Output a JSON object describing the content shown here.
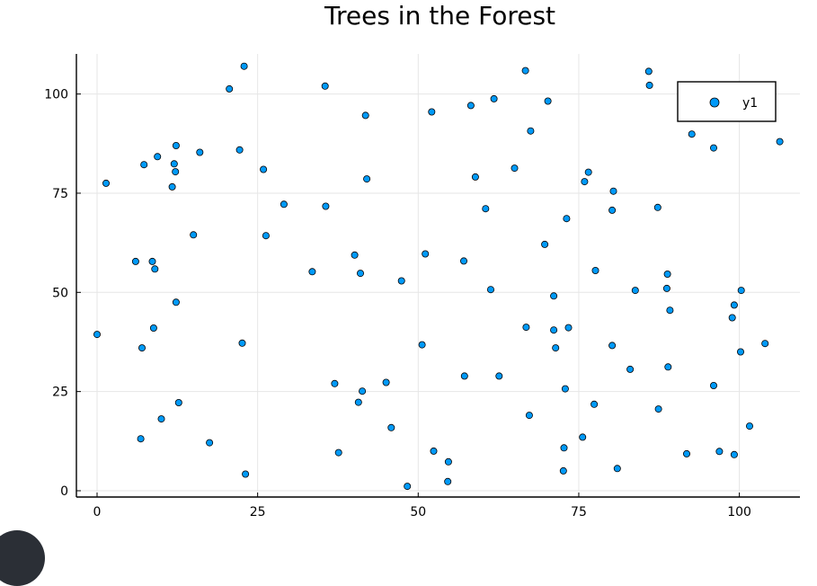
{
  "chart_data": {
    "type": "scatter",
    "title": "Trees in the Forest",
    "xlabel": "",
    "ylabel": "",
    "xlim": [
      -3,
      110
    ],
    "ylim": [
      -2,
      110
    ],
    "xticks": [
      0,
      25,
      50,
      75,
      100
    ],
    "yticks": [
      0,
      25,
      50,
      75,
      100
    ],
    "grid": true,
    "legend": "top-right",
    "series": [
      {
        "name": "y1",
        "color": "#009af9",
        "points": [
          [
            0.0,
            39.4
          ],
          [
            1.4,
            77.5
          ],
          [
            6.0,
            57.8
          ],
          [
            6.8,
            13.1
          ],
          [
            7.0,
            36.0
          ],
          [
            7.3,
            82.2
          ],
          [
            8.6,
            57.8
          ],
          [
            8.8,
            41.0
          ],
          [
            9.0,
            55.9
          ],
          [
            9.4,
            84.2
          ],
          [
            10.0,
            18.1
          ],
          [
            11.7,
            76.6
          ],
          [
            12.0,
            82.4
          ],
          [
            12.2,
            80.4
          ],
          [
            12.3,
            87.0
          ],
          [
            12.3,
            47.5
          ],
          [
            12.7,
            22.2
          ],
          [
            15.0,
            64.5
          ],
          [
            16.0,
            85.3
          ],
          [
            17.5,
            12.1
          ],
          [
            20.6,
            101.3
          ],
          [
            22.2,
            85.9
          ],
          [
            22.6,
            37.2
          ],
          [
            22.9,
            107.0
          ],
          [
            23.1,
            4.2
          ],
          [
            25.9,
            81.0
          ],
          [
            26.3,
            64.3
          ],
          [
            29.1,
            72.2
          ],
          [
            33.5,
            55.2
          ],
          [
            35.5,
            102.0
          ],
          [
            35.6,
            71.7
          ],
          [
            37.0,
            27.0
          ],
          [
            37.6,
            9.6
          ],
          [
            40.1,
            59.4
          ],
          [
            40.7,
            22.3
          ],
          [
            41.0,
            54.8
          ],
          [
            41.3,
            25.1
          ],
          [
            41.8,
            94.6
          ],
          [
            42.0,
            78.6
          ],
          [
            45.0,
            27.3
          ],
          [
            45.8,
            15.9
          ],
          [
            47.4,
            52.9
          ],
          [
            48.3,
            1.1
          ],
          [
            50.6,
            36.8
          ],
          [
            51.1,
            59.7
          ],
          [
            52.1,
            95.5
          ],
          [
            52.4,
            10.0
          ],
          [
            54.6,
            2.3
          ],
          [
            54.7,
            7.3
          ],
          [
            57.1,
            57.9
          ],
          [
            57.2,
            28.9
          ],
          [
            58.2,
            97.1
          ],
          [
            58.9,
            79.1
          ],
          [
            60.5,
            71.1
          ],
          [
            61.3,
            50.7
          ],
          [
            61.8,
            98.8
          ],
          [
            62.6,
            28.9
          ],
          [
            65.0,
            81.3
          ],
          [
            66.7,
            105.9
          ],
          [
            66.8,
            41.2
          ],
          [
            67.3,
            19.0
          ],
          [
            67.5,
            90.7
          ],
          [
            69.7,
            62.1
          ],
          [
            70.2,
            98.2
          ],
          [
            71.1,
            49.1
          ],
          [
            71.1,
            40.5
          ],
          [
            71.4,
            36.0
          ],
          [
            72.6,
            5.0
          ],
          [
            72.7,
            10.8
          ],
          [
            72.9,
            25.7
          ],
          [
            73.1,
            68.6
          ],
          [
            73.4,
            41.1
          ],
          [
            75.6,
            13.5
          ],
          [
            75.9,
            77.9
          ],
          [
            76.5,
            80.3
          ],
          [
            77.4,
            21.8
          ],
          [
            77.6,
            55.5
          ],
          [
            80.2,
            36.6
          ],
          [
            80.2,
            70.7
          ],
          [
            80.4,
            75.5
          ],
          [
            81.0,
            5.6
          ],
          [
            83.0,
            30.6
          ],
          [
            83.8,
            50.5
          ],
          [
            85.9,
            105.7
          ],
          [
            86.0,
            102.2
          ],
          [
            87.3,
            71.4
          ],
          [
            87.4,
            20.6
          ],
          [
            88.7,
            51.0
          ],
          [
            88.8,
            54.6
          ],
          [
            88.9,
            31.2
          ],
          [
            89.2,
            45.5
          ],
          [
            91.8,
            9.3
          ],
          [
            92.6,
            89.9
          ],
          [
            96.0,
            86.4
          ],
          [
            96.0,
            26.5
          ],
          [
            96.9,
            9.9
          ],
          [
            98.9,
            43.6
          ],
          [
            99.2,
            46.8
          ],
          [
            99.2,
            9.1
          ],
          [
            100.2,
            35.0
          ],
          [
            100.3,
            50.5
          ],
          [
            101.6,
            16.3
          ],
          [
            104.0,
            37.1
          ],
          [
            106.3,
            88.0
          ]
        ]
      }
    ]
  }
}
